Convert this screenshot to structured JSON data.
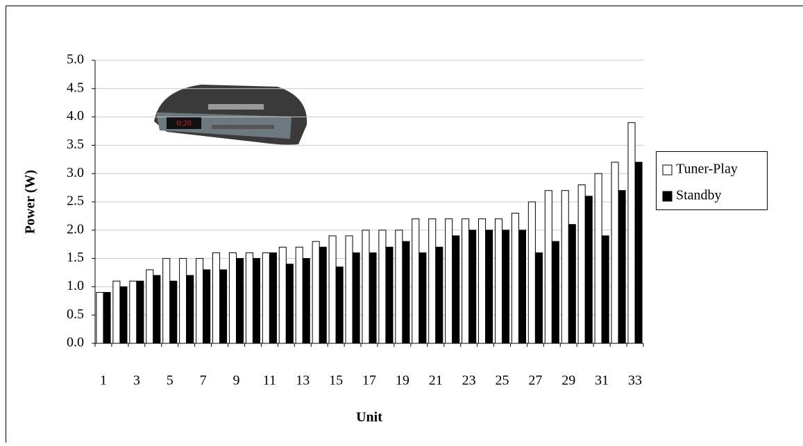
{
  "chart_data": {
    "type": "bar",
    "x_label": "Unit",
    "y_label": "Power (W)",
    "categories": [
      1,
      null,
      3,
      null,
      5,
      null,
      7,
      null,
      9,
      null,
      11,
      null,
      13,
      null,
      15,
      null,
      17,
      null,
      19,
      null,
      21,
      null,
      23,
      null,
      25,
      null,
      27,
      null,
      29,
      null,
      31,
      null,
      33
    ],
    "series": [
      {
        "name": "Tuner-Play",
        "color": "#ffffff",
        "values": [
          0.9,
          1.1,
          1.1,
          1.3,
          1.5,
          1.5,
          1.5,
          1.6,
          1.6,
          1.6,
          1.6,
          1.7,
          1.7,
          1.8,
          1.9,
          1.9,
          2.0,
          2.0,
          2.0,
          2.2,
          2.2,
          2.2,
          2.2,
          2.2,
          2.2,
          2.3,
          2.5,
          2.7,
          2.7,
          2.8,
          3.0,
          3.2,
          3.9
        ]
      },
      {
        "name": "Standby",
        "color": "#000000",
        "values": [
          0.9,
          1.0,
          1.1,
          1.2,
          1.1,
          1.2,
          1.3,
          1.3,
          1.5,
          1.5,
          1.6,
          1.4,
          1.5,
          1.7,
          1.35,
          1.6,
          1.6,
          1.7,
          1.8,
          1.6,
          1.7,
          1.9,
          2.0,
          2.0,
          2.0,
          2.0,
          1.6,
          1.8,
          2.1,
          2.6,
          1.9,
          2.7,
          3.2
        ]
      }
    ],
    "ylim": [
      0,
      5
    ],
    "yticks": [
      {
        "value": 0,
        "label": "0.0"
      },
      {
        "value": 0.5,
        "label": "0.5"
      },
      {
        "value": 1,
        "label": "1.0"
      },
      {
        "value": 1.5,
        "label": "1.5"
      },
      {
        "value": 2,
        "label": "2.0"
      },
      {
        "value": 2.5,
        "label": "2.5"
      },
      {
        "value": 3,
        "label": "3.0"
      },
      {
        "value": 3.5,
        "label": "3.5"
      },
      {
        "value": 4,
        "label": "4.0"
      },
      {
        "value": 4.5,
        "label": "4.5"
      },
      {
        "value": 5,
        "label": "5.0"
      }
    ],
    "grid": true,
    "legend": "right"
  }
}
